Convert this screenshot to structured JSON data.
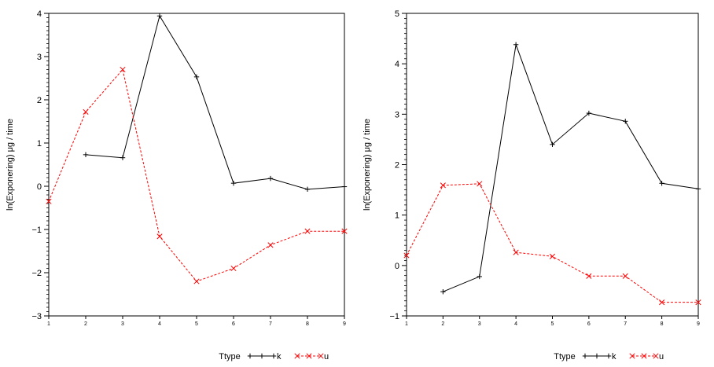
{
  "chart_data": [
    {
      "type": "line",
      "ylabel": "ln(Exponering) μg / time",
      "xlim": [
        1,
        9
      ],
      "ylim": [
        -3,
        4
      ],
      "x_ticks": [
        1,
        2,
        3,
        4,
        5,
        6,
        7,
        8,
        9
      ],
      "y_ticks": [
        -3,
        -2,
        -1,
        0,
        1,
        2,
        3,
        4
      ],
      "legend_title": "Ttype",
      "legend_placement": "bottom",
      "series": [
        {
          "name": "k",
          "color": "#000000",
          "dash": "solid",
          "marker": "plus",
          "x": [
            2,
            3,
            4,
            5,
            6,
            7,
            8,
            9
          ],
          "y": [
            0.73,
            0.66,
            3.94,
            2.53,
            0.07,
            0.18,
            -0.07,
            -0.01
          ]
        },
        {
          "name": "u",
          "color": "#ff0000",
          "dash": "dashed",
          "marker": "x",
          "x": [
            1,
            2,
            3,
            4,
            5,
            6,
            7,
            8,
            9
          ],
          "y": [
            -0.35,
            1.72,
            2.7,
            -1.16,
            -2.2,
            -1.9,
            -1.36,
            -1.04,
            -1.04
          ]
        }
      ]
    },
    {
      "type": "line",
      "ylabel": "ln(Exponering) μg / time",
      "xlim": [
        1,
        9
      ],
      "ylim": [
        -1,
        5
      ],
      "x_ticks": [
        1,
        2,
        3,
        4,
        5,
        6,
        7,
        8,
        9
      ],
      "y_ticks": [
        -1,
        0,
        1,
        2,
        3,
        4,
        5
      ],
      "legend_title": "Ttype",
      "legend_placement": "bottom",
      "series": [
        {
          "name": "k",
          "color": "#000000",
          "dash": "solid",
          "marker": "plus",
          "x": [
            2,
            3,
            4,
            5,
            6,
            7,
            8,
            9
          ],
          "y": [
            -0.52,
            -0.22,
            4.38,
            2.4,
            3.02,
            2.86,
            1.63,
            1.52
          ]
        },
        {
          "name": "u",
          "color": "#ff0000",
          "dash": "dashed",
          "marker": "x",
          "x": [
            1,
            2,
            3,
            4,
            5,
            6,
            7,
            8,
            9
          ],
          "y": [
            0.2,
            1.59,
            1.62,
            0.26,
            0.18,
            -0.21,
            -0.21,
            -0.73,
            -0.73
          ]
        }
      ]
    }
  ]
}
